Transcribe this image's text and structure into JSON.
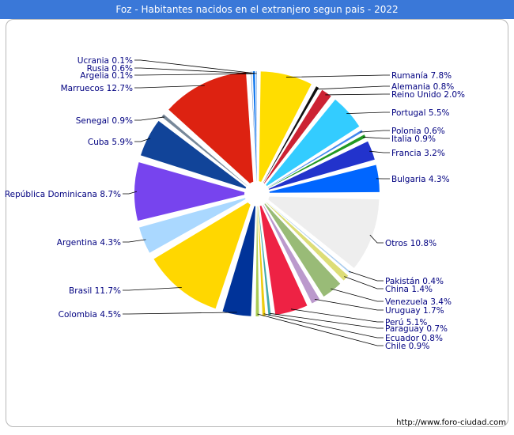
{
  "title": "Foz - Habitantes nacidos en el extranjero segun pais - 2022",
  "footer": "http://www.foro-ciudad.com",
  "chart_data": {
    "type": "pie",
    "title": "Foz - Habitantes nacidos en el extranjero segun pais - 2022",
    "label_color": "#000080",
    "slices": [
      {
        "name": "Rumanía",
        "value": 7.8,
        "label": "Rumanía 7.8%",
        "color": "#ffdd00"
      },
      {
        "name": "Alemania",
        "value": 0.8,
        "label": "Alemania 0.8%",
        "color": "#111111"
      },
      {
        "name": "Reino Unido",
        "value": 2.0,
        "label": "Reino Unido 2.0%",
        "color": "#cc2233"
      },
      {
        "name": "Portugal",
        "value": 5.5,
        "label": "Portugal 5.5%",
        "color": "#33ccff"
      },
      {
        "name": "Polonia",
        "value": 0.6,
        "label": "Polonia 0.6%",
        "color": "#4488ee"
      },
      {
        "name": "Italia",
        "value": 0.9,
        "label": "Italia 0.9%",
        "color": "#229922"
      },
      {
        "name": "Francia",
        "value": 3.2,
        "label": "Francia 3.2%",
        "color": "#2233cc"
      },
      {
        "name": "Bulgaria",
        "value": 4.3,
        "label": "Bulgaria 4.3%",
        "color": "#0066ff"
      },
      {
        "name": "Otros",
        "value": 10.8,
        "label": "Otros 10.8%",
        "color": "#eeeeee"
      },
      {
        "name": "Pakistán",
        "value": 0.4,
        "label": "Pakistán 0.4%",
        "color": "#aaccee"
      },
      {
        "name": "China",
        "value": 1.4,
        "label": "China 1.4%",
        "color": "#dddd77"
      },
      {
        "name": "Venezuela",
        "value": 3.4,
        "label": "Venezuela 3.4%",
        "color": "#99bb77"
      },
      {
        "name": "Uruguay",
        "value": 1.7,
        "label": "Uruguay 1.7%",
        "color": "#bb99cc"
      },
      {
        "name": "Perú",
        "value": 5.1,
        "label": "Perú 5.1%",
        "color": "#ee2244"
      },
      {
        "name": "Paraguay",
        "value": 0.7,
        "label": "Paraguay 0.7%",
        "color": "#44aaaa"
      },
      {
        "name": "Ecuador",
        "value": 0.8,
        "label": "Ecuador 0.8%",
        "color": "#eecc11"
      },
      {
        "name": "Chile",
        "value": 0.9,
        "label": "Chile 0.9%",
        "color": "#aacc55"
      },
      {
        "name": "Colombia",
        "value": 4.5,
        "label": "Colombia 4.5%",
        "color": "#003399"
      },
      {
        "name": "Brasil",
        "value": 11.7,
        "label": "Brasil 11.7%",
        "color": "#ffd700"
      },
      {
        "name": "Argentina",
        "value": 4.3,
        "label": "Argentina 4.3%",
        "color": "#aad8ff"
      },
      {
        "name": "República Dominicana",
        "value": 8.7,
        "label": "República Dominicana 8.7%",
        "color": "#7744ee"
      },
      {
        "name": "Cuba",
        "value": 5.9,
        "label": "Cuba 5.9%",
        "color": "#114499"
      },
      {
        "name": "Senegal",
        "value": 0.9,
        "label": "Senegal 0.9%",
        "color": "#778899"
      },
      {
        "name": "Marruecos",
        "value": 12.7,
        "label": "Marruecos 12.7%",
        "color": "#dd2211"
      },
      {
        "name": "Argelia",
        "value": 0.1,
        "label": "Argelia 0.1%",
        "color": "#2255aa"
      },
      {
        "name": "Rusia",
        "value": 0.6,
        "label": "Rusia 0.6%",
        "color": "#1177ee"
      },
      {
        "name": "Ucrania",
        "value": 0.1,
        "label": "Ucrania 0.1%",
        "color": "#3377cc"
      }
    ]
  }
}
